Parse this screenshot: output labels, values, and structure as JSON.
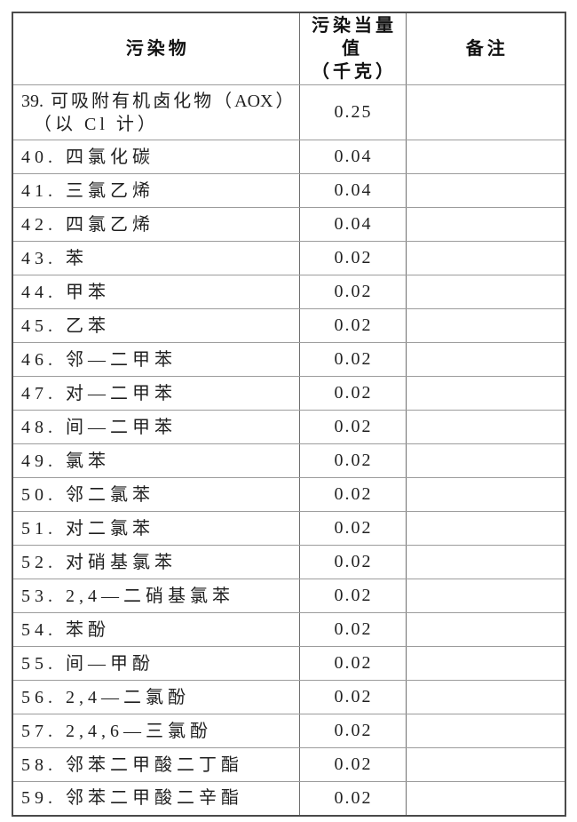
{
  "page": {
    "background_color": "#ffffff",
    "text_color": "#1f1f1f",
    "outer_border_color": "#4a4a4a",
    "grid_line_color": "#9c9c9c"
  },
  "table": {
    "header": {
      "pollutant": "污染物",
      "value_line1": "污染当量值",
      "value_line2": "（千克）",
      "remark": "备注"
    },
    "rows": [
      {
        "pollutant": "39. 可吸附有机卤化物（AOX）",
        "pollutant_line2": "（以 Cl 计）",
        "value": "0.25",
        "remark": ""
      },
      {
        "pollutant": "40. 四氯化碳",
        "value": "0.04",
        "remark": ""
      },
      {
        "pollutant": "41. 三氯乙烯",
        "value": "0.04",
        "remark": ""
      },
      {
        "pollutant": "42. 四氯乙烯",
        "value": "0.04",
        "remark": ""
      },
      {
        "pollutant": "43. 苯",
        "value": "0.02",
        "remark": ""
      },
      {
        "pollutant": "44. 甲苯",
        "value": "0.02",
        "remark": ""
      },
      {
        "pollutant": "45. 乙苯",
        "value": "0.02",
        "remark": ""
      },
      {
        "pollutant": "46. 邻—二甲苯",
        "value": "0.02",
        "remark": ""
      },
      {
        "pollutant": "47. 对—二甲苯",
        "value": "0.02",
        "remark": ""
      },
      {
        "pollutant": "48. 间—二甲苯",
        "value": "0.02",
        "remark": ""
      },
      {
        "pollutant": "49. 氯苯",
        "value": "0.02",
        "remark": ""
      },
      {
        "pollutant": "50. 邻二氯苯",
        "value": "0.02",
        "remark": ""
      },
      {
        "pollutant": "51. 对二氯苯",
        "value": "0.02",
        "remark": ""
      },
      {
        "pollutant": "52. 对硝基氯苯",
        "value": "0.02",
        "remark": ""
      },
      {
        "pollutant": "53. 2,4—二硝基氯苯",
        "value": "0.02",
        "remark": ""
      },
      {
        "pollutant": "54. 苯酚",
        "value": "0.02",
        "remark": ""
      },
      {
        "pollutant": "55. 间—甲酚",
        "value": "0.02",
        "remark": ""
      },
      {
        "pollutant": "56. 2,4—二氯酚",
        "value": "0.02",
        "remark": ""
      },
      {
        "pollutant": "57. 2,4,6—三氯酚",
        "value": "0.02",
        "remark": ""
      },
      {
        "pollutant": "58. 邻苯二甲酸二丁酯",
        "value": "0.02",
        "remark": ""
      },
      {
        "pollutant": "59. 邻苯二甲酸二辛酯",
        "value": "0.02",
        "remark": ""
      }
    ]
  }
}
